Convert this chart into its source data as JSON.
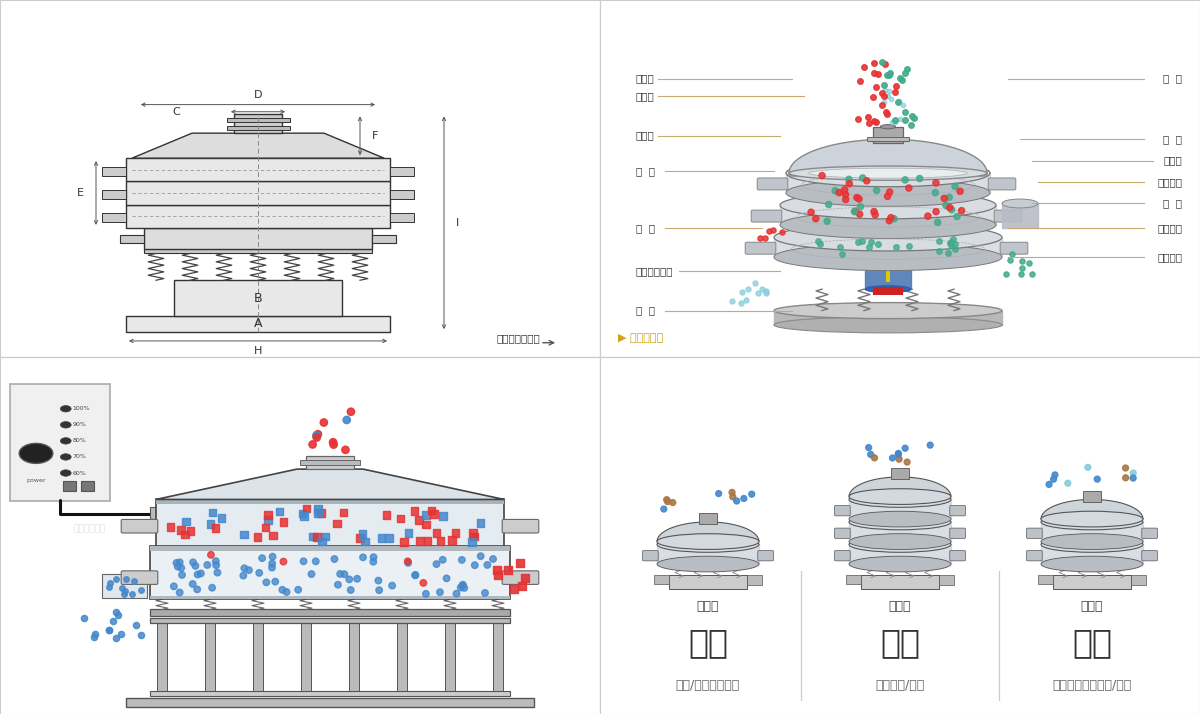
{
  "bg_color": "#ffffff",
  "border_color": "#cccccc",
  "top_left_caption": "外形尺寸示意图",
  "top_right_caption": "结构示意图",
  "labels_left": [
    "进料口",
    "防尘盖",
    "出料口",
    "束  环",
    "弹  簧",
    "运输固定螺栓",
    "机  座"
  ],
  "labels_right": [
    "筛  网",
    "网  架",
    "加重块",
    "上部重锤",
    "筛  盘",
    "振动电机",
    "下部重锤"
  ],
  "bottom_sections": [
    {
      "icon": "单层式",
      "title": "分级",
      "desc": "颗粒/粉末准确分级"
    },
    {
      "icon": "三层式",
      "title": "过滤",
      "desc": "去除异物/结块"
    },
    {
      "icon": "双层式",
      "title": "除杂",
      "desc": "去除液体中的颗粒/异物"
    }
  ],
  "line_color": "#c8a96e",
  "text_color": "#333333",
  "desc_color": "#666666",
  "red_dot": "#e63232",
  "blue_dot": "#4488cc",
  "green_dot": "#44aa88",
  "cyan_dot": "#88ccdd",
  "brown_dot": "#aa7744",
  "dim_color": "#555555",
  "pct_labels": [
    "100%",
    "90%",
    "80%",
    "70%",
    "60%"
  ]
}
